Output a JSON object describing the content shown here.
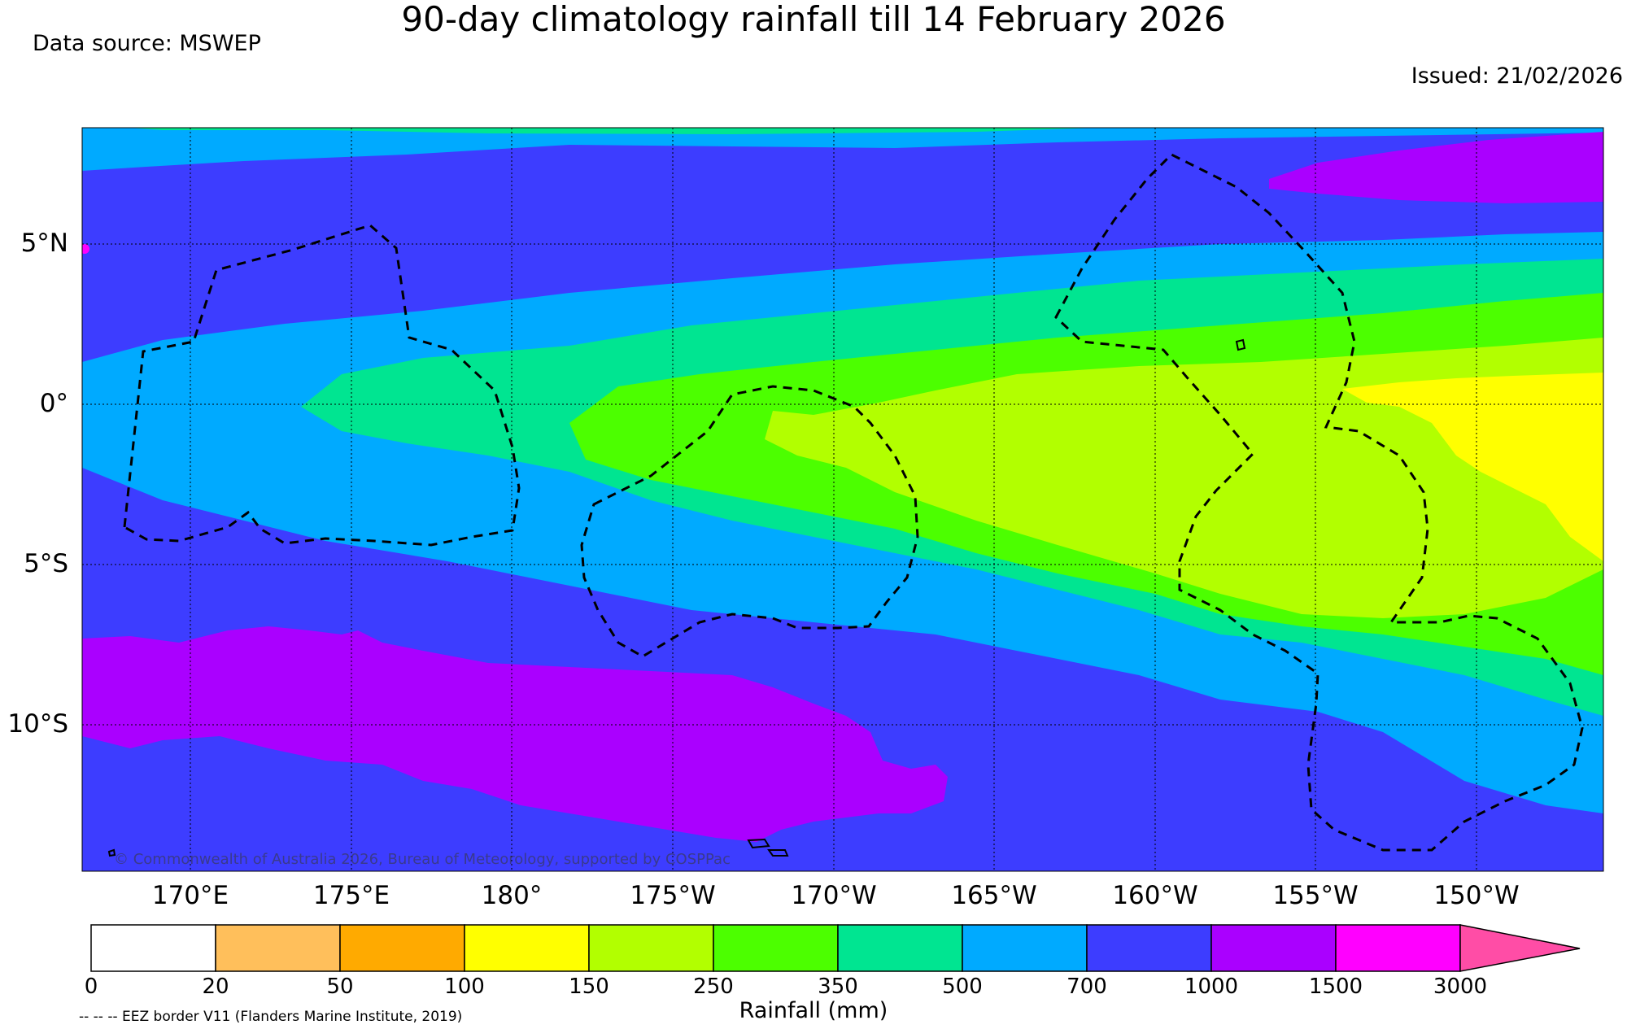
{
  "header": {
    "title": "90-day climatology rainfall till 14 February 2026",
    "source": "Data source: MSWEP",
    "issued": "Issued: 21/02/2026"
  },
  "map": {
    "copyright": "© Commonwealth of Australia 2026, Bureau of Meteorology, supported by COSPPac",
    "lat_labels": [
      "5°N",
      "0°",
      "5°S",
      "10°S"
    ],
    "lon_labels": [
      "170°E",
      "175°E",
      "180°",
      "175°W",
      "170°W",
      "165°W",
      "160°W",
      "155°W",
      "150°W"
    ],
    "extent": {
      "lon_min": 166.7,
      "lon_max": 214.2,
      "lat_min": -14.2,
      "lat_max": 8.7
    }
  },
  "colorbar": {
    "title": "Rainfall (mm)",
    "ticks": [
      "0",
      "20",
      "50",
      "100",
      "150",
      "250",
      "350",
      "500",
      "700",
      "1000",
      "1500",
      "3000"
    ],
    "colors": [
      "#ffffff",
      "#ffbf5b",
      "#ffaa00",
      "#ffff00",
      "#b2ff00",
      "#4cff00",
      "#00e591",
      "#00aaff",
      "#3d3dff",
      "#aa00ff",
      "#ff00ff",
      "#ff4da6"
    ]
  },
  "legend_note": "-- -- -- EEZ border V11 (Flanders Marine Institute, 2019)"
}
